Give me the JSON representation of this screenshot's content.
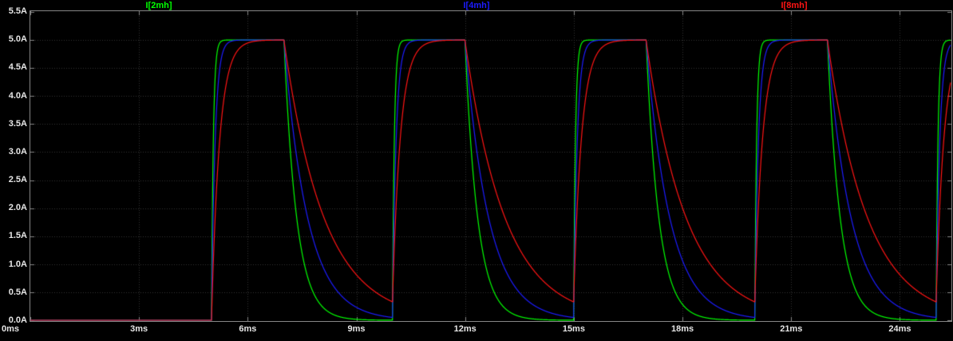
{
  "colors": {
    "background": "#000000",
    "plot_border": "#868686",
    "grid": "#343434",
    "axis_text": "#e6e6e6"
  },
  "chart_data": {
    "type": "line",
    "title": "",
    "xlabel": "",
    "ylabel": "",
    "x_unit": "ms",
    "y_unit": "A",
    "xlim": [
      0,
      25.4
    ],
    "ylim": [
      0,
      5.5
    ],
    "grid": true,
    "legend_position": "top",
    "x_ticks": [
      {
        "value": 0,
        "label": "0ms"
      },
      {
        "value": 3,
        "label": "3ms"
      },
      {
        "value": 6,
        "label": "6ms"
      },
      {
        "value": 9,
        "label": "9ms"
      },
      {
        "value": 12,
        "label": "12ms"
      },
      {
        "value": 15,
        "label": "15ms"
      },
      {
        "value": 18,
        "label": "18ms"
      },
      {
        "value": 21,
        "label": "21ms"
      },
      {
        "value": 24,
        "label": "24ms"
      }
    ],
    "y_ticks": [
      {
        "value": 5.5,
        "label": "5.5A"
      },
      {
        "value": 5.0,
        "label": "5.0A"
      },
      {
        "value": 4.5,
        "label": "4.5A"
      },
      {
        "value": 4.0,
        "label": "4.0A"
      },
      {
        "value": 3.5,
        "label": "3.5A"
      },
      {
        "value": 3.0,
        "label": "3.0A"
      },
      {
        "value": 2.5,
        "label": "2.5A"
      },
      {
        "value": 2.0,
        "label": "2.0A"
      },
      {
        "value": 1.5,
        "label": "1.5A"
      },
      {
        "value": 1.0,
        "label": "1.0A"
      },
      {
        "value": 0.5,
        "label": "0.5A"
      },
      {
        "value": 0.0,
        "label": "0.0A"
      }
    ],
    "pulse_source": {
      "start_ms": 5,
      "on_ms": 2,
      "period_ms": 5,
      "amplitude_A": 5.0,
      "baseline_A": 0.0,
      "num_pulses_visible": 4,
      "pulse_windows_ms": [
        [
          5,
          7
        ],
        [
          10,
          12
        ],
        [
          15,
          17
        ],
        [
          20,
          22
        ]
      ]
    },
    "series": [
      {
        "name": "I[2mh]",
        "color": "#00ff00",
        "inductance_mH": 2,
        "tau_rise_ms": 0.05,
        "tau_fall_ms": 0.35,
        "peak_A": 5.0,
        "baseline_A": 0.0
      },
      {
        "name": "I[4mh]",
        "color": "#1c1cff",
        "inductance_mH": 4,
        "tau_rise_ms": 0.1,
        "tau_fall_ms": 0.65,
        "peak_A": 5.0,
        "baseline_A": 0.0
      },
      {
        "name": "I[8mh]",
        "color": "#ff1414",
        "inductance_mH": 8,
        "tau_rise_ms": 0.22,
        "tau_fall_ms": 1.1,
        "peak_A": 5.0,
        "baseline_A": 0.0
      }
    ]
  }
}
